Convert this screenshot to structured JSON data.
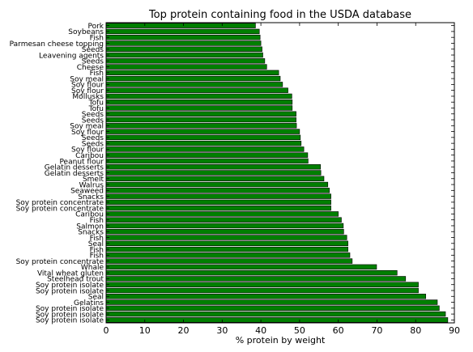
{
  "chart_data": {
    "type": "bar",
    "orientation": "horizontal",
    "title": "Top protein containing food in the USDA database",
    "xlabel": "% protein by weight",
    "ylabel": "",
    "xlim": [
      0,
      90
    ],
    "xticks": [
      0,
      10,
      20,
      30,
      40,
      50,
      60,
      70,
      80,
      90
    ],
    "grid": false,
    "bar_color": "#007f00",
    "categories": [
      "Pork",
      "Soybeans",
      "Fish",
      "Parmesan cheese topping",
      "Seeds",
      "Leavening agents",
      "Seeds",
      "Cheese",
      "Fish",
      "Soy meal",
      "Soy flour",
      "Soy flour",
      "Mollusks",
      "Tofu",
      "Tofu",
      "Seeds",
      "Seeds",
      "Soy meal",
      "Soy flour",
      "Seeds",
      "Seeds",
      "Soy flour",
      "Caribou",
      "Peanut flour",
      "Gelatin desserts",
      "Gelatin desserts",
      "Smelt",
      "Walrus",
      "Seaweed",
      "Snacks",
      "Soy protein concentrate",
      "Soy protein concentrate",
      "Caribou",
      "Fish",
      "Salmon",
      "Snacks",
      "Fish",
      "Seal",
      "Fish",
      "Fish",
      "Soy protein concentrate",
      "Whale",
      "Vital wheat gluten",
      "Steelhead trout",
      "Soy protein isolate",
      "Soy protein isolate",
      "Seal",
      "Gelatins",
      "Soy protein isolate",
      "Soy protein isolate",
      "Soy protein isolate"
    ],
    "values": [
      38.6,
      39.6,
      39.8,
      40.0,
      40.3,
      40.5,
      41.0,
      41.5,
      44.6,
      45.0,
      45.6,
      47.0,
      48.0,
      48.1,
      48.1,
      49.1,
      49.1,
      49.2,
      50.0,
      50.2,
      50.4,
      51.1,
      52.1,
      52.2,
      55.4,
      55.5,
      56.3,
      57.3,
      57.7,
      58.1,
      58.1,
      58.1,
      60.0,
      60.8,
      61.3,
      61.4,
      62.2,
      62.5,
      62.5,
      63.0,
      63.6,
      69.9,
      75.2,
      77.4,
      80.7,
      80.7,
      82.6,
      85.6,
      86.1,
      87.7,
      88.3
    ]
  }
}
